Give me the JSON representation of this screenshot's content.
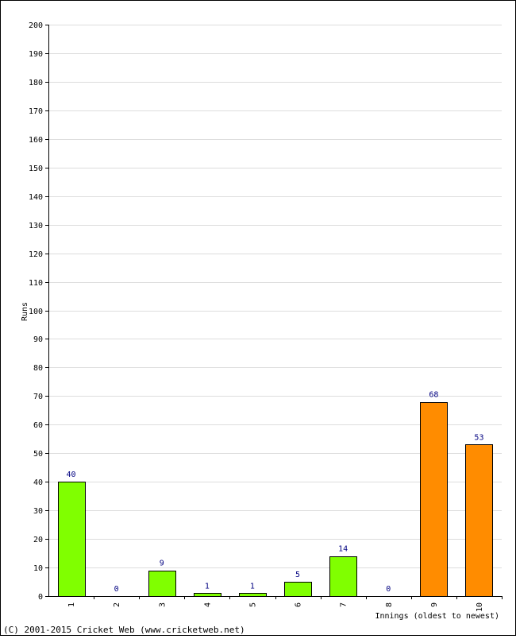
{
  "chart_data": {
    "type": "bar",
    "categories": [
      "1",
      "2",
      "3",
      "4",
      "5",
      "6",
      "7",
      "8",
      "9",
      "10"
    ],
    "values": [
      40,
      0,
      9,
      1,
      1,
      5,
      14,
      0,
      68,
      53
    ],
    "colors": [
      "#80ff00",
      "#80ff00",
      "#80ff00",
      "#80ff00",
      "#80ff00",
      "#80ff00",
      "#80ff00",
      "#80ff00",
      "#ff8c00",
      "#ff8c00"
    ],
    "data_labels": [
      "40",
      "0",
      "9",
      "1",
      "1",
      "5",
      "14",
      "0",
      "68",
      "53"
    ],
    "xlabel": "Innings (oldest to newest)",
    "ylabel": "Runs",
    "ylim": [
      0,
      200
    ],
    "yticks": [
      0,
      10,
      20,
      30,
      40,
      50,
      60,
      70,
      80,
      90,
      100,
      110,
      120,
      130,
      140,
      150,
      160,
      170,
      180,
      190,
      200
    ],
    "grid": true
  },
  "footer": {
    "credit": "(C) 2001-2015 Cricket Web (www.cricketweb.net)"
  }
}
